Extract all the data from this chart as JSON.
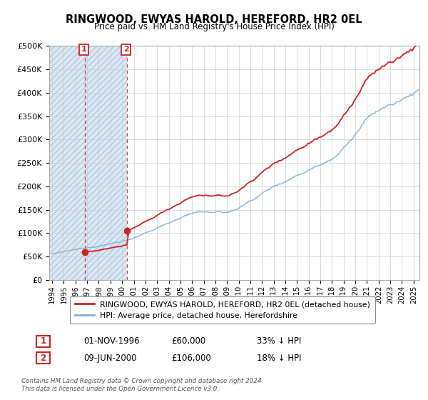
{
  "title": "RINGWOOD, EWYAS HAROLD, HEREFORD, HR2 0EL",
  "subtitle": "Price paid vs. HM Land Registry's House Price Index (HPI)",
  "ylim": [
    0,
    500000
  ],
  "xlim_start": 1993.75,
  "xlim_end": 2025.5,
  "hpi_color": "#7eb0d4",
  "price_color": "#cc2222",
  "annotation_color": "#cc2222",
  "hatch_facecolor": "#dce9f5",
  "hatch_edgecolor": "#b0c8e0",
  "legend_label_red": "RINGWOOD, EWYAS HAROLD, HEREFORD, HR2 0EL (detached house)",
  "legend_label_blue": "HPI: Average price, detached house, Herefordshire",
  "sale1_date": 1996.83,
  "sale1_price": 60000,
  "sale1_label": "1",
  "sale2_date": 2000.44,
  "sale2_price": 106000,
  "sale2_label": "2",
  "annotation1_date": "01-NOV-1996",
  "annotation1_price": "£60,000",
  "annotation1_hpi": "33% ↓ HPI",
  "annotation2_date": "09-JUN-2000",
  "annotation2_price": "£106,000",
  "annotation2_hpi": "18% ↓ HPI",
  "footer": "Contains HM Land Registry data © Crown copyright and database right 2024.\nThis data is licensed under the Open Government Licence v3.0.",
  "yticks": [
    0,
    50000,
    100000,
    150000,
    200000,
    250000,
    300000,
    350000,
    400000,
    450000,
    500000
  ],
  "ytick_labels": [
    "£0",
    "£50K",
    "£100K",
    "£150K",
    "£200K",
    "£250K",
    "£300K",
    "£350K",
    "£400K",
    "£450K",
    "£500K"
  ]
}
